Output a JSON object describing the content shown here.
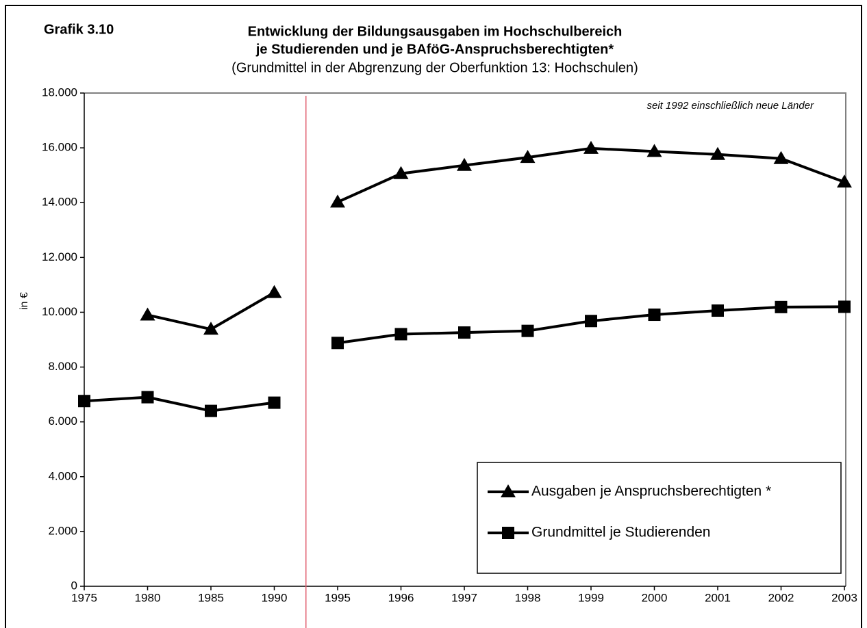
{
  "chart_data": {
    "type": "line",
    "label": "Grafik 3.10",
    "title": [
      "Entwicklung der Bildungsausgaben im Hochschulbereich",
      "je Studierenden und je BAföG-Anspruchsberechtigten*"
    ],
    "subtitle": "(Grundmittel in der Abgrenzung der Oberfunktion 13: Hochschulen)",
    "annotation": "seit 1992 einschließlich neue Länder",
    "y_label": "in €",
    "categories": [
      "1975",
      "1980",
      "1985",
      "1990",
      "1995",
      "1996",
      "1997",
      "1998",
      "1999",
      "2000",
      "2001",
      "2002",
      "2003"
    ],
    "series": [
      {
        "name": "Ausgaben je Anspruchsberechtigten *",
        "color": "#000000",
        "marker": "triangle",
        "values": [
          null,
          9900,
          9380,
          10720,
          14020,
          15060,
          15360,
          15650,
          15980,
          15870,
          15760,
          15610,
          14750
        ]
      },
      {
        "name": "Grundmittel je Studierenden",
        "color": "#000000",
        "marker": "square",
        "values": [
          6760,
          6900,
          6400,
          6700,
          8880,
          9200,
          9260,
          9320,
          9680,
          9910,
          10060,
          10190,
          10200
        ]
      }
    ],
    "divider_after": "1990",
    "divider_color": "#e06070",
    "ylim": [
      0,
      18000
    ],
    "yticks": [
      {
        "value": 0,
        "label": "0"
      },
      {
        "value": 2000,
        "label": "2.000"
      },
      {
        "value": 4000,
        "label": "4.000"
      },
      {
        "value": 6000,
        "label": "6.000"
      },
      {
        "value": 8000,
        "label": "8.000"
      },
      {
        "value": 10000,
        "label": "10.000"
      },
      {
        "value": 12000,
        "label": "12.000"
      },
      {
        "value": 14000,
        "label": "14.000"
      },
      {
        "value": 16000,
        "label": "16.000"
      },
      {
        "value": 18000,
        "label": "18.000"
      }
    ],
    "legend": "lower right"
  }
}
